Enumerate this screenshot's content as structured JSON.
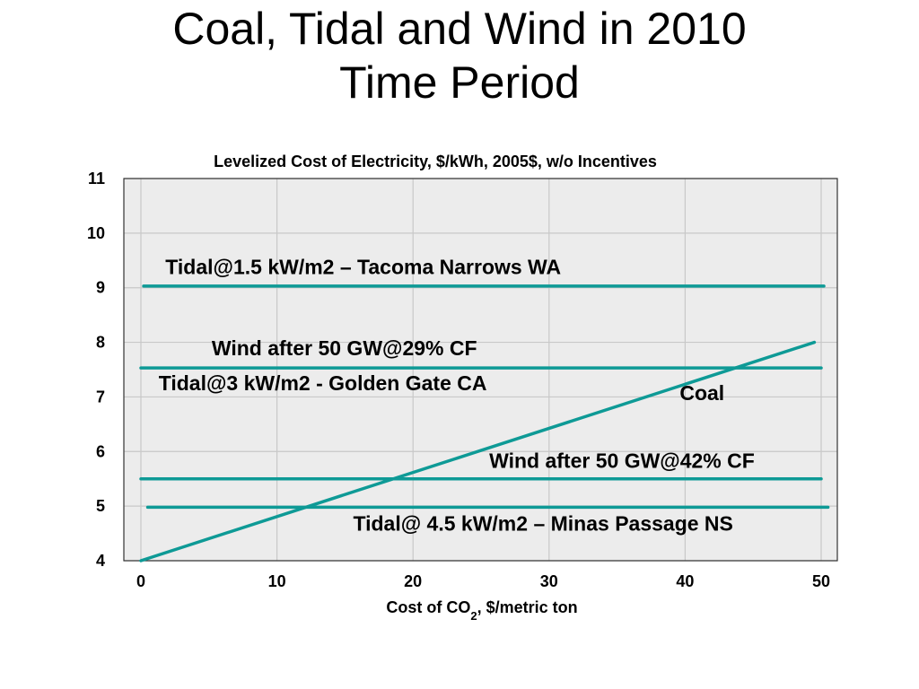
{
  "slide": {
    "title_line1": "Coal, Tidal and Wind in 2010",
    "title_line2": "Time Period"
  },
  "colors": {
    "series": "#0e9a96",
    "plot_bg": "#ececec",
    "grid": "#c8c8c8",
    "frame": "#333333"
  },
  "chart_data": {
    "type": "line",
    "title": "Levelized Cost of Electricity, $/kWh, 2005$, w/o Incentives",
    "xlabel_main": "Cost of CO",
    "xlabel_sub": "2",
    "xlabel_rest": ", $/metric ton",
    "xlim": [
      0,
      50
    ],
    "ylim": [
      4,
      11
    ],
    "x_ticks": [
      "0",
      "10",
      "20",
      "30",
      "40",
      "50"
    ],
    "y_ticks": [
      "4",
      "5",
      "6",
      "7",
      "8",
      "9",
      "10",
      "11"
    ],
    "grid": true,
    "series": [
      {
        "x": [
          0.2,
          50.2
        ],
        "y": [
          9.03,
          9.03
        ]
      },
      {
        "x": [
          0,
          50
        ],
        "y": [
          7.53,
          7.53
        ]
      },
      {
        "x": [
          0,
          50
        ],
        "y": [
          5.5,
          5.5
        ]
      },
      {
        "x": [
          0.5,
          50.5
        ],
        "y": [
          4.98,
          4.98
        ]
      },
      {
        "x": [
          0,
          49.5
        ],
        "y": [
          4.0,
          8.0
        ]
      }
    ],
    "annotations": [
      {
        "text": "Tidal@1.5 kW/m2 – Tacoma Narrows WA",
        "x": 1.8,
        "y": 9.25
      },
      {
        "text": "Wind after 50 GW@29% CF",
        "x": 5.2,
        "y": 7.76
      },
      {
        "text": "Tidal@3 kW/m2 - Golden Gate CA",
        "x": 1.3,
        "y": 7.12
      },
      {
        "text": "Coal",
        "x": 39.6,
        "y": 6.94
      },
      {
        "text": "Wind after 50 GW@42% CF",
        "x": 25.6,
        "y": 5.7
      },
      {
        "text": "Tidal@ 4.5 kW/m2 – Minas Passage NS",
        "x": 15.6,
        "y": 4.55
      }
    ]
  }
}
